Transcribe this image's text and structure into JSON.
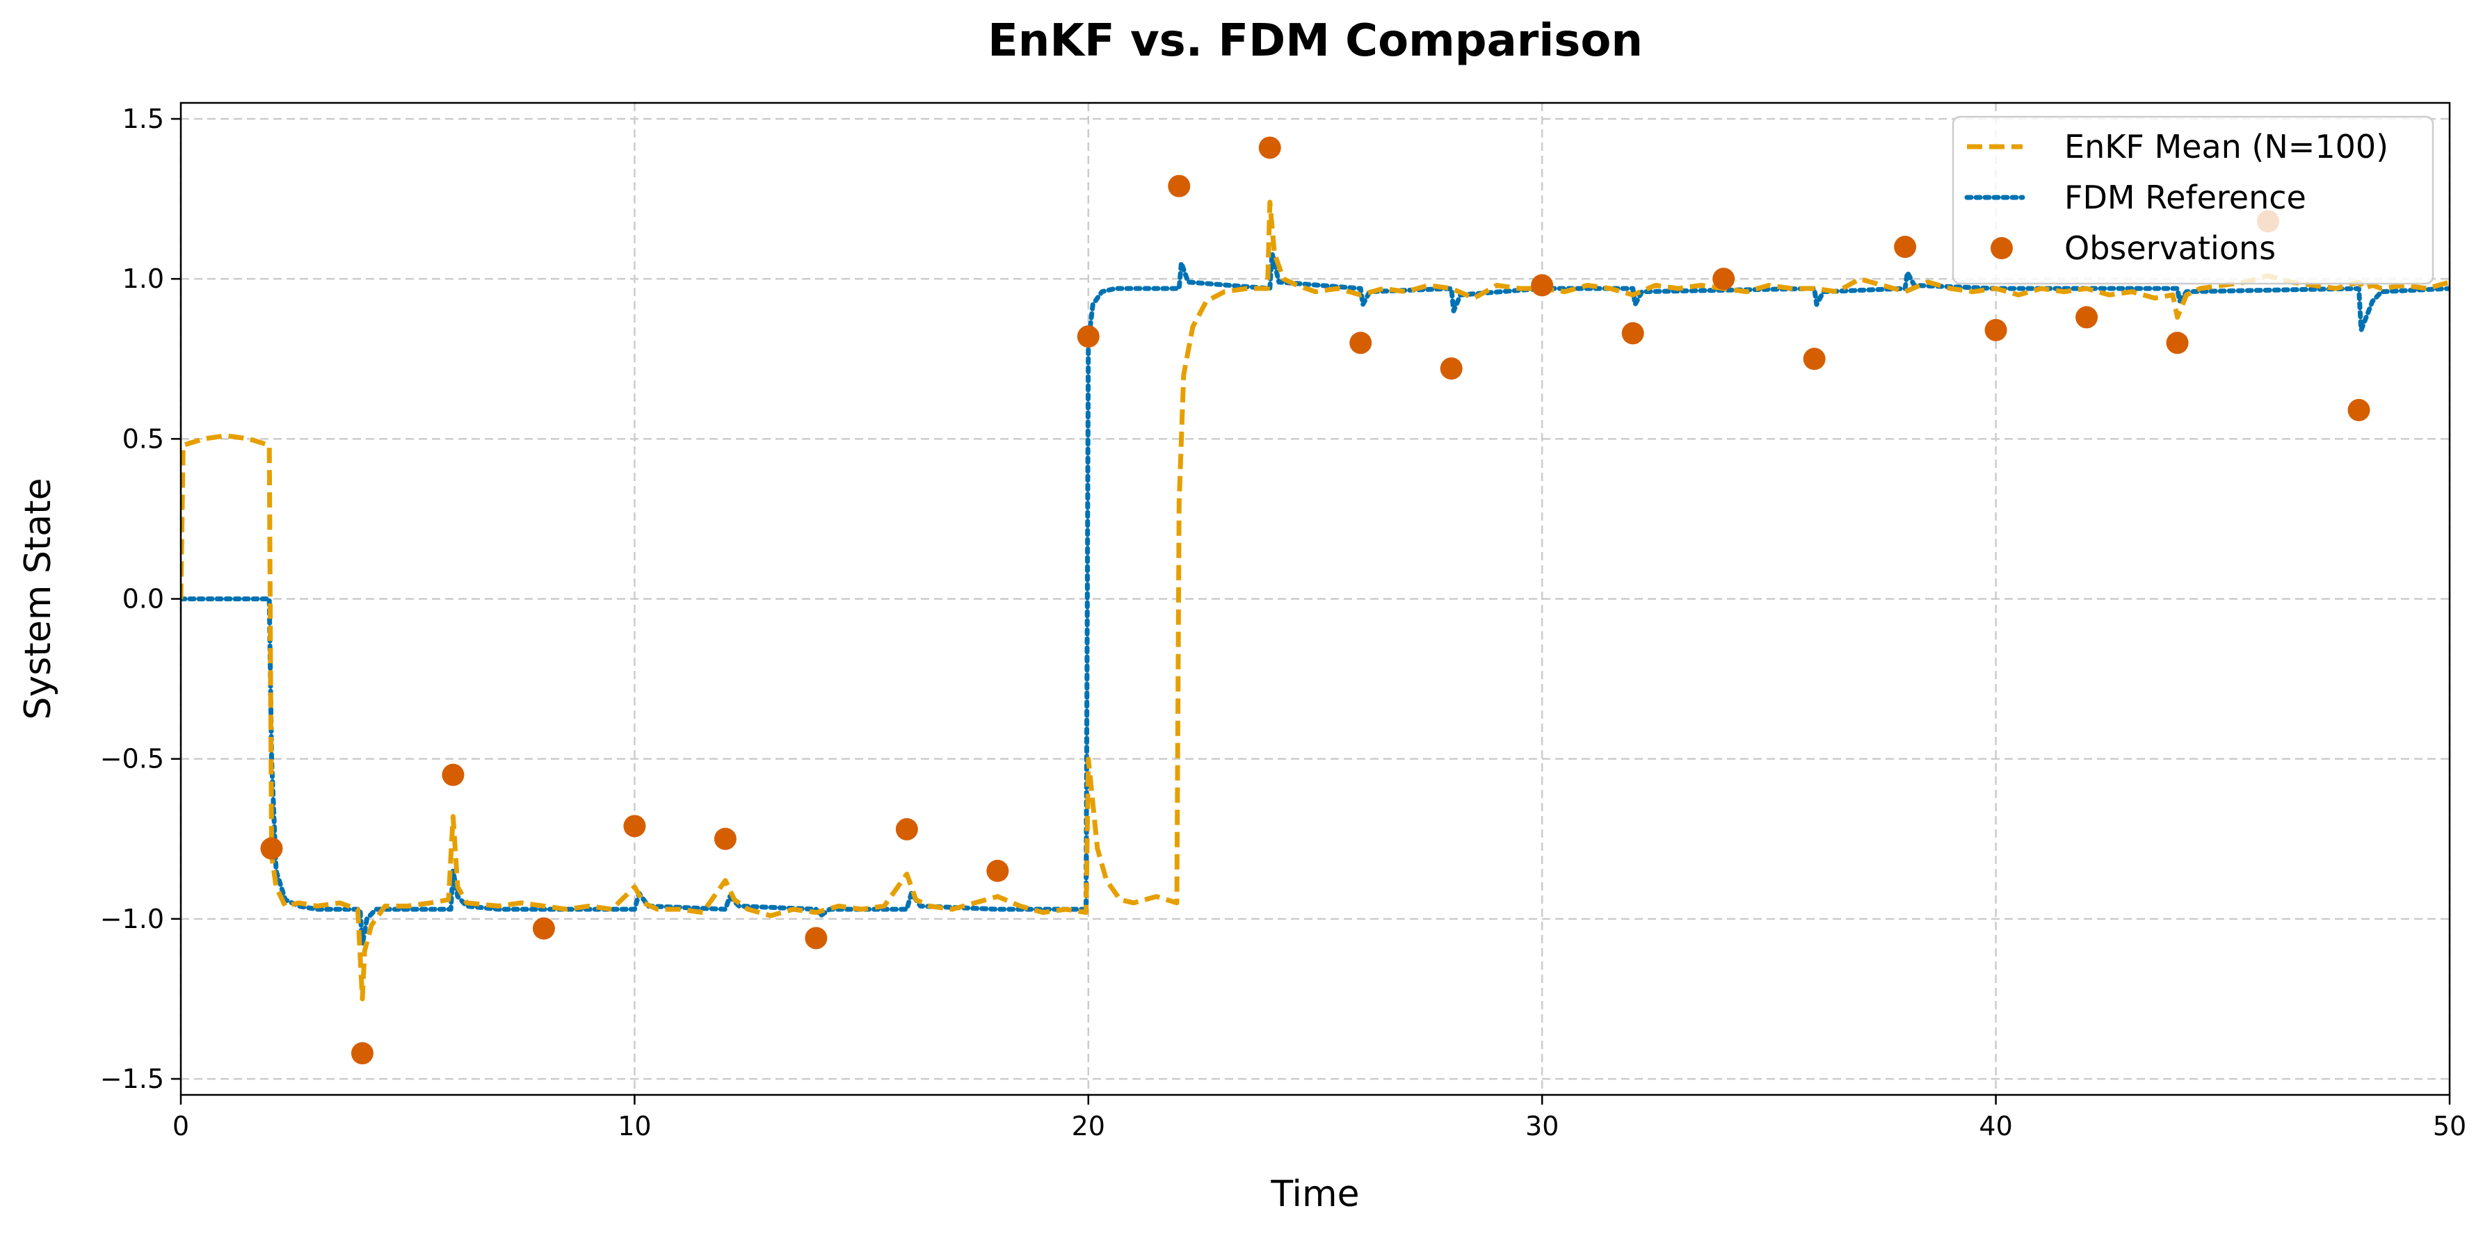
{
  "chart_data": {
    "type": "line",
    "title": "EnKF vs. FDM Comparison",
    "xlabel": "Time",
    "ylabel": "System State",
    "xlim": [
      0,
      50
    ],
    "ylim": [
      -1.55,
      1.55
    ],
    "xticks": [
      0,
      10,
      20,
      30,
      40,
      50
    ],
    "xtick_labels": [
      "0",
      "10",
      "20",
      "30",
      "40",
      "50"
    ],
    "yticks": [
      -1.5,
      -1.0,
      -0.5,
      0.0,
      0.5,
      1.0,
      1.5
    ],
    "ytick_labels": [
      "−1.5",
      "−1.0",
      "−0.5",
      "0.0",
      "0.5",
      "1.0",
      "1.5"
    ],
    "grid": true,
    "legend_position": "upper right",
    "series": [
      {
        "name": "EnKF Mean (N=100)",
        "kind": "line",
        "linestyle": "dashed",
        "color": "#E69F00",
        "x": [
          0,
          0.05,
          0.5,
          1.0,
          1.5,
          1.95,
          2.0,
          2.1,
          2.3,
          2.6,
          3.0,
          3.5,
          3.9,
          4.0,
          4.05,
          4.2,
          4.5,
          5.0,
          5.5,
          5.9,
          6.0,
          6.1,
          6.3,
          7.0,
          7.5,
          8.0,
          8.5,
          9.0,
          9.5,
          10.0,
          10.2,
          10.5,
          11.0,
          11.5,
          12.0,
          12.2,
          12.5,
          13.0,
          13.5,
          14.0,
          14.5,
          15.0,
          15.5,
          16.0,
          16.2,
          16.5,
          17.0,
          17.5,
          18.0,
          18.5,
          19.0,
          19.5,
          19.95,
          20.0,
          20.2,
          20.4,
          20.7,
          21.0,
          21.5,
          21.95,
          22.0,
          22.1,
          22.3,
          22.6,
          23.0,
          23.5,
          23.95,
          24.0,
          24.1,
          24.3,
          24.6,
          25.0,
          25.5,
          26.0,
          26.5,
          27.0,
          27.5,
          28.0,
          28.5,
          29.0,
          29.5,
          30.0,
          30.5,
          31.0,
          31.5,
          32.0,
          32.5,
          33.0,
          33.5,
          34.0,
          34.5,
          35.0,
          35.5,
          36.0,
          36.5,
          37.0,
          37.5,
          38.0,
          38.5,
          39.0,
          39.5,
          40.0,
          40.5,
          41.0,
          41.5,
          42.0,
          42.5,
          43.0,
          43.5,
          43.9,
          44.0,
          44.2,
          44.5,
          45.0,
          45.5,
          46.0,
          46.5,
          47.0,
          47.5,
          48.0,
          48.1,
          48.3,
          48.5,
          49.0,
          49.5,
          50.0
        ],
        "values": [
          0.0,
          0.48,
          0.5,
          0.51,
          0.5,
          0.48,
          -0.8,
          -0.9,
          -0.96,
          -0.95,
          -0.96,
          -0.95,
          -0.97,
          -1.25,
          -1.1,
          -1.02,
          -0.96,
          -0.96,
          -0.95,
          -0.94,
          -0.68,
          -0.9,
          -0.95,
          -0.96,
          -0.95,
          -0.96,
          -0.97,
          -0.96,
          -0.97,
          -0.9,
          -0.95,
          -0.97,
          -0.97,
          -0.98,
          -0.88,
          -0.94,
          -0.97,
          -0.99,
          -0.97,
          -0.98,
          -0.96,
          -0.97,
          -0.96,
          -0.86,
          -0.94,
          -0.96,
          -0.97,
          -0.95,
          -0.93,
          -0.96,
          -0.98,
          -0.97,
          -0.98,
          -0.5,
          -0.78,
          -0.88,
          -0.94,
          -0.95,
          -0.93,
          -0.95,
          0.3,
          0.7,
          0.85,
          0.93,
          0.96,
          0.97,
          0.97,
          1.24,
          1.08,
          1.0,
          0.98,
          0.96,
          0.97,
          0.95,
          0.97,
          0.96,
          0.98,
          0.97,
          0.94,
          0.98,
          0.97,
          0.97,
          0.96,
          0.98,
          0.97,
          0.95,
          0.98,
          0.97,
          0.98,
          0.97,
          0.96,
          0.98,
          0.97,
          0.97,
          0.96,
          1.0,
          0.98,
          0.96,
          0.99,
          0.97,
          0.96,
          0.97,
          0.95,
          0.97,
          0.96,
          0.97,
          0.95,
          0.96,
          0.94,
          0.95,
          0.88,
          0.95,
          0.97,
          0.98,
          0.99,
          1.01,
          0.99,
          0.98,
          0.97,
          0.99,
          0.97,
          0.98,
          0.97,
          0.98,
          0.97,
          0.99
        ]
      },
      {
        "name": "FDM Reference",
        "kind": "line",
        "linestyle": "dotted",
        "color": "#0072B2",
        "x": [
          0,
          1.95,
          2.0,
          2.1,
          2.3,
          2.6,
          3.0,
          3.5,
          3.95,
          4.0,
          4.1,
          4.3,
          5.0,
          5.95,
          6.0,
          6.1,
          6.3,
          7.0,
          8.0,
          10.0,
          10.1,
          10.3,
          12.0,
          12.1,
          12.3,
          14.0,
          14.1,
          14.3,
          16.0,
          16.1,
          16.3,
          18.0,
          19.95,
          20.0,
          20.1,
          20.3,
          20.6,
          21.0,
          22.0,
          22.05,
          22.2,
          24.0,
          24.05,
          24.2,
          26.0,
          26.05,
          26.2,
          28.0,
          28.05,
          28.2,
          30.0,
          32.0,
          32.05,
          32.2,
          36.0,
          36.05,
          36.2,
          38.0,
          38.05,
          38.2,
          40.0,
          44.0,
          44.05,
          44.2,
          48.0,
          48.05,
          48.3,
          48.5,
          50.0
        ],
        "values": [
          0.0,
          0.0,
          -0.5,
          -0.85,
          -0.94,
          -0.96,
          -0.97,
          -0.97,
          -0.97,
          -1.08,
          -1.0,
          -0.97,
          -0.97,
          -0.97,
          -0.85,
          -0.93,
          -0.96,
          -0.97,
          -0.97,
          -0.97,
          -0.92,
          -0.96,
          -0.97,
          -0.93,
          -0.96,
          -0.97,
          -0.99,
          -0.97,
          -0.97,
          -0.92,
          -0.96,
          -0.97,
          -0.97,
          0.8,
          0.92,
          0.96,
          0.97,
          0.97,
          0.97,
          1.05,
          0.99,
          0.97,
          1.08,
          0.99,
          0.97,
          0.92,
          0.96,
          0.97,
          0.9,
          0.95,
          0.97,
          0.97,
          0.92,
          0.96,
          0.97,
          0.92,
          0.96,
          0.97,
          1.02,
          0.98,
          0.97,
          0.97,
          0.93,
          0.96,
          0.97,
          0.84,
          0.93,
          0.96,
          0.97
        ]
      },
      {
        "name": "Observations",
        "kind": "scatter",
        "marker": "circle",
        "color": "#D55E00",
        "x": [
          2,
          4,
          6,
          8,
          10,
          12,
          14,
          16,
          18,
          20,
          22,
          24,
          26,
          28,
          30,
          32,
          34,
          36,
          38,
          40,
          42,
          44,
          46,
          48
        ],
        "values": [
          -0.78,
          -1.42,
          -0.55,
          -1.03,
          -0.71,
          -0.75,
          -1.06,
          -0.72,
          -0.85,
          0.82,
          1.29,
          1.41,
          0.8,
          0.72,
          0.98,
          0.83,
          1.0,
          0.75,
          1.1,
          0.84,
          0.88,
          0.8,
          1.18,
          0.59
        ]
      }
    ]
  }
}
